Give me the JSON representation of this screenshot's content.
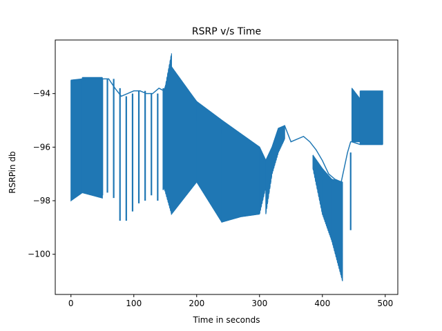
{
  "chart_data": {
    "type": "line",
    "title": "RSRP v/s Time",
    "xlabel": "Time in seconds",
    "ylabel": "RSRPin db",
    "xlim": [
      -25,
      520
    ],
    "ylim": [
      -101.5,
      -92.0
    ],
    "xticks": [
      0,
      100,
      200,
      300,
      400,
      500
    ],
    "yticks": [
      -100,
      -98,
      -96,
      -94
    ],
    "xtick_labels": [
      "0",
      "100",
      "200",
      "300",
      "400",
      "500"
    ],
    "ytick_labels": [
      "−100",
      "−98",
      "−96",
      "−94"
    ],
    "grid": false,
    "series": [
      {
        "color": "#1f77b4",
        "segments": [
          {
            "x": [
              0,
              18
            ],
            "upper": [
              -93.5,
              -93.45
            ],
            "lower": [
              -98.0,
              -97.7
            ]
          },
          {
            "x": [
              18,
              50
            ],
            "upper": [
              -93.4,
              -93.4
            ],
            "lower": [
              -97.7,
              -97.9
            ]
          },
          {
            "x": [
              148,
              160
            ],
            "upper": [
              -94.0,
              -92.5
            ],
            "lower": [
              -97.5,
              -98.5
            ]
          },
          {
            "x": [
              160,
              200
            ],
            "upper": [
              -93.0,
              -94.3
            ],
            "lower": [
              -98.5,
              -97.3
            ]
          },
          {
            "x": [
              200,
              240
            ],
            "upper": [
              -94.3,
              -95.0
            ],
            "lower": [
              -97.3,
              -98.8
            ]
          },
          {
            "x": [
              240,
              270
            ],
            "upper": [
              -95.0,
              -95.5
            ],
            "lower": [
              -98.8,
              -98.6
            ]
          },
          {
            "x": [
              270,
              300
            ],
            "upper": [
              -95.5,
              -96.0
            ],
            "lower": [
              -98.6,
              -98.5
            ]
          },
          {
            "x": [
              300,
              310
            ],
            "upper": [
              -96.0,
              -96.5
            ],
            "lower": [
              -98.5,
              -97.5
            ]
          },
          {
            "x": [
              310,
              320
            ],
            "upper": [
              -96.5,
              -96.0
            ],
            "lower": [
              -98.5,
              -97.0
            ]
          },
          {
            "x": [
              320,
              330
            ],
            "upper": [
              -96.0,
              -95.3
            ],
            "lower": [
              -97.0,
              -96.2
            ]
          },
          {
            "x": [
              330,
              340
            ],
            "upper": [
              -95.3,
              -95.2
            ],
            "lower": [
              -96.2,
              -95.7
            ]
          },
          {
            "x": [
              385,
              400
            ],
            "upper": [
              -96.3,
              -96.8
            ],
            "lower": [
              -96.8,
              -98.5
            ]
          },
          {
            "x": [
              400,
              415
            ],
            "upper": [
              -96.8,
              -97.2
            ],
            "lower": [
              -98.5,
              -99.5
            ]
          },
          {
            "x": [
              415,
              432
            ],
            "upper": [
              -97.2,
              -97.3
            ],
            "lower": [
              -99.5,
              -101.0
            ]
          },
          {
            "x": [
              447,
              460
            ],
            "upper": [
              -93.8,
              -94.2
            ],
            "lower": [
              -95.8,
              -95.8
            ]
          },
          {
            "x": [
              460,
              496
            ],
            "upper": [
              -93.9,
              -93.9
            ],
            "lower": [
              -95.9,
              -95.9
            ]
          }
        ],
        "envelope_line": {
          "x": [
            0,
            50,
            60,
            70,
            80,
            90,
            100,
            110,
            120,
            130,
            140,
            148,
            160,
            175,
            190,
            200,
            240,
            270,
            300,
            310,
            320,
            330,
            340,
            350,
            360,
            370,
            380,
            390,
            400,
            410,
            420,
            430,
            440,
            445,
            447,
            460,
            480,
            496
          ],
          "y": [
            -93.5,
            -93.45,
            -93.45,
            -93.8,
            -94.1,
            -94.0,
            -93.9,
            -93.9,
            -94.0,
            -94.0,
            -93.8,
            -93.9,
            -93.0,
            -93.7,
            -94.0,
            -94.3,
            -95.0,
            -95.5,
            -96.0,
            -96.5,
            -96.0,
            -95.3,
            -95.2,
            -95.8,
            -95.7,
            -95.6,
            -95.8,
            -96.1,
            -96.5,
            -97.0,
            -97.2,
            -97.3,
            -96.2,
            -95.8,
            -95.8,
            -95.9,
            -95.9,
            -95.9
          ]
        },
        "spikes": [
          {
            "x": 50,
            "y0": -93.45,
            "y1": -97.8
          },
          {
            "x": 58,
            "y0": -93.45,
            "y1": -97.7
          },
          {
            "x": 68,
            "y0": -93.45,
            "y1": -97.9
          },
          {
            "x": 78,
            "y0": -93.8,
            "y1": -98.75
          },
          {
            "x": 88,
            "y0": -94.1,
            "y1": -98.75
          },
          {
            "x": 98,
            "y0": -94.0,
            "y1": -98.4
          },
          {
            "x": 108,
            "y0": -93.9,
            "y1": -98.1
          },
          {
            "x": 118,
            "y0": -93.9,
            "y1": -98.0
          },
          {
            "x": 128,
            "y0": -94.0,
            "y1": -97.8
          },
          {
            "x": 138,
            "y0": -94.0,
            "y1": -98.0
          },
          {
            "x": 147,
            "y0": -93.8,
            "y1": -97.6
          },
          {
            "x": 445,
            "y0": -96.2,
            "y1": -99.1
          }
        ]
      }
    ]
  }
}
